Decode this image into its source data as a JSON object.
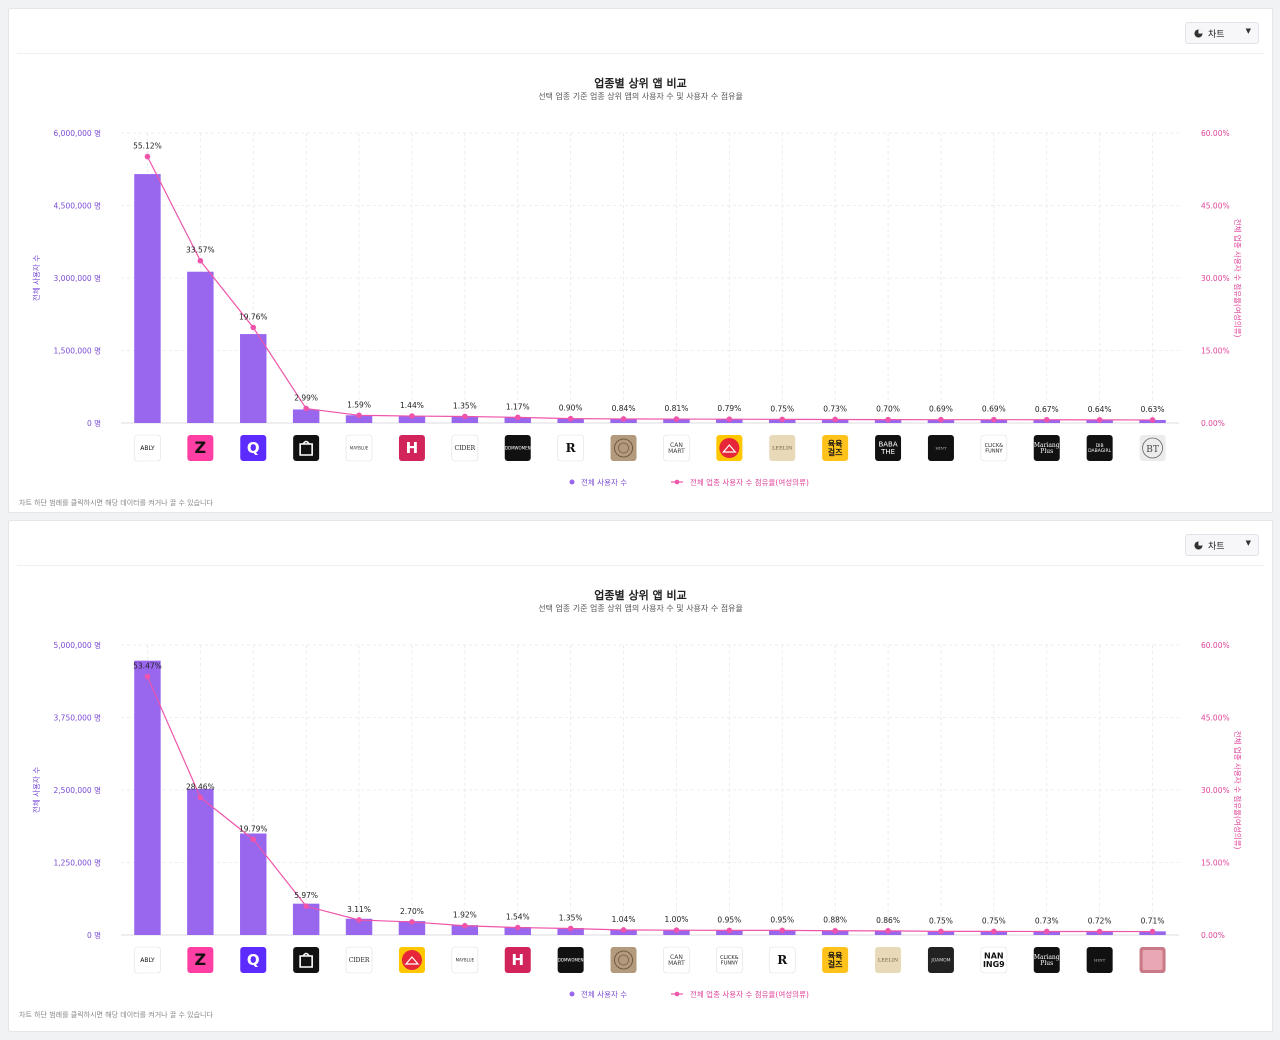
{
  "colors": {
    "bar": "#9966ee",
    "line": "#ee55aa",
    "left_axis": "#7a4bd6",
    "right_axis": "#e0449a",
    "grid": "#e8e8ec"
  },
  "panels": [
    {
      "dropdown_label": "차트",
      "title": "업종별 상위 앱 비교",
      "subtitle": "선택 업종 기준 업종 상위 앱의 사용자 수 및 사용자 수 점유율",
      "left_axis_label": "전체 사용자 수",
      "right_axis_label": "전체 업종 사용자 수 점유율(여성의류)",
      "footnote": "차트 하단 범례를 클릭하시면 해당 데이터를 켜거나 끌 수 있습니다",
      "legend": [
        "전체 사용자 수",
        "전체 업종 사용자 수 점유율(여성의류)"
      ],
      "left_ticks": [
        "6,000,000 명",
        "4,500,000 명",
        "3,000,000 명",
        "1,500,000 명",
        "0 명"
      ],
      "right_ticks": [
        "60.00%",
        "45.00%",
        "30.00%",
        "15.00%",
        "0.00%"
      ],
      "chart_data": {
        "type": "bar",
        "categories": [
          "ABLY",
          "ZIGZAG",
          "Q",
          "B",
          "MAYBLUE",
          "HOTPING",
          "CIDER",
          "DDMWOMEN",
          "R",
          "Seal",
          "CANMART",
          "Red",
          "LEELIN",
          "육육걸즈",
          "BABATHE",
          "Hint",
          "CLICK&FUNNY",
          "Mariang Plus",
          "DABAGIRL",
          "BT"
        ],
        "logo_text": [
          "ABLY",
          "Z",
          "Q",
          "",
          "MAYBLUE",
          "H",
          "CIDER",
          "DDMWOMEN",
          "R",
          "",
          "CAN MART",
          "",
          "LEELIN",
          "육육 걸즈",
          "BABA THE",
          "HINT",
          "CLICK& FUNNY",
          "Mariang Plus",
          "DIB DABAGIRL",
          ""
        ],
        "logo_icons": [
          "text",
          "z-icon",
          "q-icon",
          "heart-bag-icon",
          "text",
          "h-icon",
          "text",
          "text",
          "r-icon",
          "seal-icon",
          "text",
          "hanger-icon",
          "l-icon",
          "text",
          "text",
          "text",
          "text",
          "text",
          "text",
          "bt-icon"
        ],
        "values": [
          5150000,
          3130000,
          1840000,
          280000,
          160000,
          145000,
          135000,
          117000,
          90000,
          84000,
          81000,
          79000,
          75000,
          73000,
          70000,
          69000,
          69000,
          67000,
          64000,
          63000
        ],
        "share": [
          55.12,
          33.57,
          19.76,
          2.99,
          1.59,
          1.44,
          1.35,
          1.17,
          0.9,
          0.84,
          0.81,
          0.79,
          0.75,
          0.73,
          0.7,
          0.69,
          0.69,
          0.67,
          0.64,
          0.63
        ],
        "share_labels": [
          "55.12%",
          "33.57%",
          "19.76%",
          "2.99%",
          "1.59%",
          "1.44%",
          "1.35%",
          "1.17%",
          "0.90%",
          "0.84%",
          "0.81%",
          "0.79%",
          "0.75%",
          "0.73%",
          "0.70%",
          "0.69%",
          "0.69%",
          "0.67%",
          "0.64%",
          "0.63%"
        ],
        "ylim": [
          0,
          6000000
        ],
        "y2lim": [
          0,
          60
        ]
      }
    },
    {
      "dropdown_label": "차트",
      "title": "업종별 상위 앱 비교",
      "subtitle": "선택 업종 기준 업종 상위 앱의 사용자 수 및 사용자 수 점유율",
      "left_axis_label": "전체 사용자 수",
      "right_axis_label": "전체 업종 사용자 수 점유율(여성의류)",
      "footnote": "차트 하단 범례를 클릭하시면 해당 데이터를 켜거나 끌 수 있습니다",
      "legend": [
        "전체 사용자 수",
        "전체 업종 사용자 수 점유율(여성의류)"
      ],
      "left_ticks": [
        "5,000,000 명",
        "3,750,000 명",
        "2,500,000 명",
        "1,250,000 명",
        "0 명"
      ],
      "right_ticks": [
        "60.00%",
        "45.00%",
        "30.00%",
        "15.00%",
        "0.00%"
      ],
      "chart_data": {
        "type": "bar",
        "categories": [
          "ABLY",
          "ZIGZAG",
          "Q",
          "B",
          "CIDER",
          "Red",
          "MAYBLUE",
          "HOTPING",
          "DDMWOMEN",
          "Seal",
          "CANMART",
          "CLICK&FUNNY",
          "R",
          "육육걸즈",
          "LEELIN",
          "JOAMOM",
          "NANING9",
          "Mariang Plus",
          "Hint",
          "Pink"
        ],
        "logo_text": [
          "ABLY",
          "Z",
          "Q",
          "",
          "CIDER",
          "",
          "MAYBLUE",
          "H",
          "DDMWOMEN",
          "",
          "CAN MART",
          "CLICK& FUNNY",
          "R",
          "육육 걸즈",
          "LEELIN",
          "JOAMOM",
          "NAN ING9",
          "Mariang Plus",
          "HINT",
          ""
        ],
        "logo_icons": [
          "text",
          "z-icon",
          "q-icon",
          "heart-bag-icon",
          "text",
          "hanger-icon",
          "text",
          "h-icon",
          "text",
          "seal-icon",
          "text",
          "text",
          "r-icon",
          "text",
          "l-icon",
          "text",
          "text",
          "text",
          "text",
          "pink-icon"
        ],
        "values": [
          4730000,
          2520000,
          1750000,
          540000,
          280000,
          240000,
          170000,
          137000,
          120000,
          92000,
          89000,
          84000,
          84000,
          78000,
          76000,
          67000,
          67000,
          65000,
          64000,
          63000
        ],
        "share": [
          53.47,
          28.46,
          19.79,
          5.97,
          3.11,
          2.7,
          1.92,
          1.54,
          1.35,
          1.04,
          1.0,
          0.95,
          0.95,
          0.88,
          0.86,
          0.75,
          0.75,
          0.73,
          0.72,
          0.71
        ],
        "share_labels": [
          "53.47%",
          "28.46%",
          "19.79%",
          "5.97%",
          "3.11%",
          "2.70%",
          "1.92%",
          "1.54%",
          "1.35%",
          "1.04%",
          "1.00%",
          "0.95%",
          "0.95%",
          "0.88%",
          "0.86%",
          "0.75%",
          "0.75%",
          "0.73%",
          "0.72%",
          "0.71%"
        ],
        "ylim": [
          0,
          5000000
        ],
        "y2lim": [
          0,
          60
        ]
      }
    }
  ]
}
